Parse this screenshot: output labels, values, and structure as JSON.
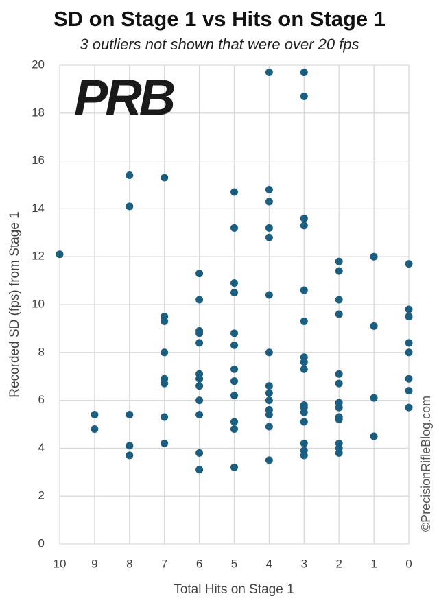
{
  "chart_data": {
    "type": "scatter",
    "title": "SD on Stage 1 vs Hits on Stage 1",
    "subtitle": "3 outliers not shown that were over 20 fps",
    "x_label": "Total Hits on Stage 1",
    "y_label": "Recorded SD (fps) from Stage 1",
    "watermark": "©PrecisionRifleBlog.com",
    "logo": "PRB",
    "color": "#1b5e7f",
    "grid": true,
    "xlim": [
      10,
      0
    ],
    "xticks": [
      10,
      9,
      8,
      7,
      6,
      5,
      4,
      3,
      2,
      1,
      0
    ],
    "ylim": [
      0,
      20
    ],
    "yticks": [
      0,
      2,
      4,
      6,
      8,
      10,
      12,
      14,
      16,
      18,
      20
    ],
    "x": [
      10,
      9,
      9,
      8,
      8,
      8,
      8,
      8,
      7,
      7,
      7,
      7,
      7,
      7,
      7,
      7,
      6,
      6,
      6,
      6,
      6,
      6,
      6,
      6,
      6,
      6,
      6,
      6,
      5,
      5,
      5,
      5,
      5,
      5,
      5,
      5,
      5,
      5,
      5,
      5,
      4,
      4,
      4,
      4,
      4,
      4,
      4,
      4,
      4,
      4,
      4,
      4,
      4,
      4,
      3,
      3,
      3,
      3,
      3,
      3,
      3,
      3,
      3,
      3,
      3,
      3,
      3,
      3,
      3,
      3,
      2,
      2,
      2,
      2,
      2,
      2,
      2,
      2,
      2,
      2,
      2,
      2,
      2,
      1,
      1,
      1,
      1,
      0,
      0,
      0,
      0,
      0,
      0,
      0,
      0
    ],
    "values": [
      12.1,
      5.4,
      4.8,
      15.4,
      14.1,
      5.4,
      4.1,
      3.7,
      15.3,
      9.5,
      9.3,
      8.0,
      6.9,
      6.7,
      5.3,
      4.2,
      11.3,
      10.2,
      8.9,
      8.8,
      8.4,
      7.1,
      6.9,
      6.6,
      6.0,
      5.4,
      3.8,
      3.1,
      14.7,
      13.2,
      10.9,
      10.5,
      8.8,
      8.3,
      7.3,
      6.8,
      6.2,
      5.1,
      4.8,
      3.2,
      19.7,
      14.8,
      14.3,
      13.2,
      12.8,
      10.4,
      8.0,
      6.6,
      6.3,
      6.0,
      5.6,
      5.4,
      4.9,
      3.5,
      19.7,
      18.7,
      13.6,
      13.3,
      10.6,
      9.3,
      7.8,
      7.6,
      7.3,
      5.8,
      5.7,
      5.5,
      5.1,
      4.2,
      3.9,
      3.7,
      11.8,
      11.4,
      10.2,
      9.6,
      7.1,
      6.7,
      5.9,
      5.7,
      5.3,
      5.2,
      4.2,
      4.0,
      3.8,
      12.0,
      9.1,
      6.1,
      4.5,
      11.7,
      9.8,
      9.5,
      8.4,
      8.0,
      6.9,
      6.4,
      5.7
    ]
  }
}
